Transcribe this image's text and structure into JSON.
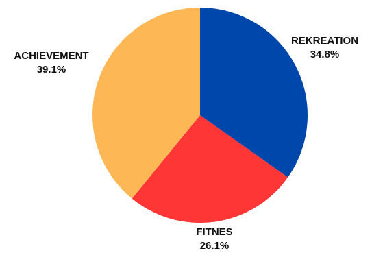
{
  "chart_data": {
    "type": "pie",
    "start": "top",
    "direction": "clockwise",
    "slices": [
      {
        "label": "REKREATION",
        "value": 34.8,
        "display": "34.8%",
        "color": "#0047AB"
      },
      {
        "label": "FITNES",
        "value": 26.1,
        "display": "26.1%",
        "color": "#FF3636"
      },
      {
        "label": "ACHIEVEMENT",
        "value": 39.1,
        "display": "39.1%",
        "color": "#FDB855"
      }
    ]
  }
}
